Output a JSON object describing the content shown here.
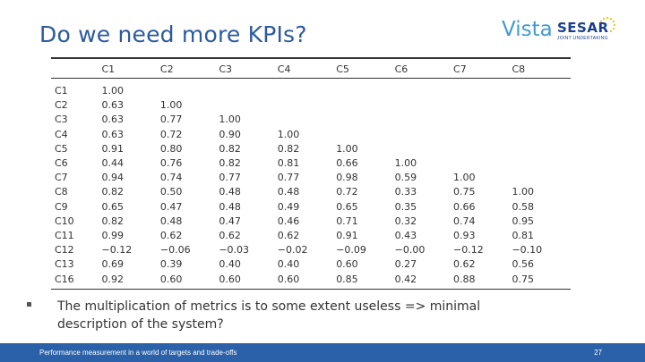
{
  "slide": {
    "title": "Do we need more KPIs?",
    "bullet": "The multiplication of metrics is to some extent useless => minimal description of the system?",
    "footer_text": "Performance measurement in a world of targets and trade-offs",
    "page_number": "27"
  },
  "logo": {
    "vista": "Vista",
    "sesar": "SESAR",
    "tagline": "Joint Undertaking"
  },
  "table": {
    "headers": [
      "",
      "C1",
      "C2",
      "C3",
      "C4",
      "C5",
      "C6",
      "C7",
      "C8"
    ],
    "rows": [
      [
        "C1",
        "1.00",
        "",
        "",
        "",
        "",
        "",
        "",
        ""
      ],
      [
        "C2",
        "0.63",
        "1.00",
        "",
        "",
        "",
        "",
        "",
        ""
      ],
      [
        "C3",
        "0.63",
        "0.77",
        "1.00",
        "",
        "",
        "",
        "",
        ""
      ],
      [
        "C4",
        "0.63",
        "0.72",
        "0.90",
        "1.00",
        "",
        "",
        "",
        ""
      ],
      [
        "C5",
        "0.91",
        "0.80",
        "0.82",
        "0.82",
        "1.00",
        "",
        "",
        ""
      ],
      [
        "C6",
        "0.44",
        "0.76",
        "0.82",
        "0.81",
        "0.66",
        "1.00",
        "",
        ""
      ],
      [
        "C7",
        "0.94",
        "0.74",
        "0.77",
        "0.77",
        "0.98",
        "0.59",
        "1.00",
        ""
      ],
      [
        "C8",
        "0.82",
        "0.50",
        "0.48",
        "0.48",
        "0.72",
        "0.33",
        "0.75",
        "1.00"
      ],
      [
        "C9",
        "0.65",
        "0.47",
        "0.48",
        "0.49",
        "0.65",
        "0.35",
        "0.66",
        "0.58"
      ],
      [
        "C10",
        "0.82",
        "0.48",
        "0.47",
        "0.46",
        "0.71",
        "0.32",
        "0.74",
        "0.95"
      ],
      [
        "C11",
        "0.99",
        "0.62",
        "0.62",
        "0.62",
        "0.91",
        "0.43",
        "0.93",
        "0.81"
      ],
      [
        "C12",
        "−0.12",
        "−0.06",
        "−0.03",
        "−0.02",
        "−0.09",
        "−0.00",
        "−0.12",
        "−0.10"
      ],
      [
        "C13",
        "0.69",
        "0.39",
        "0.40",
        "0.40",
        "0.60",
        "0.27",
        "0.62",
        "0.56"
      ],
      [
        "C16",
        "0.92",
        "0.60",
        "0.60",
        "0.60",
        "0.85",
        "0.42",
        "0.88",
        "0.75"
      ]
    ]
  },
  "colors": {
    "title": "#2c5aa0",
    "footer_bg": "#2a61a8"
  }
}
